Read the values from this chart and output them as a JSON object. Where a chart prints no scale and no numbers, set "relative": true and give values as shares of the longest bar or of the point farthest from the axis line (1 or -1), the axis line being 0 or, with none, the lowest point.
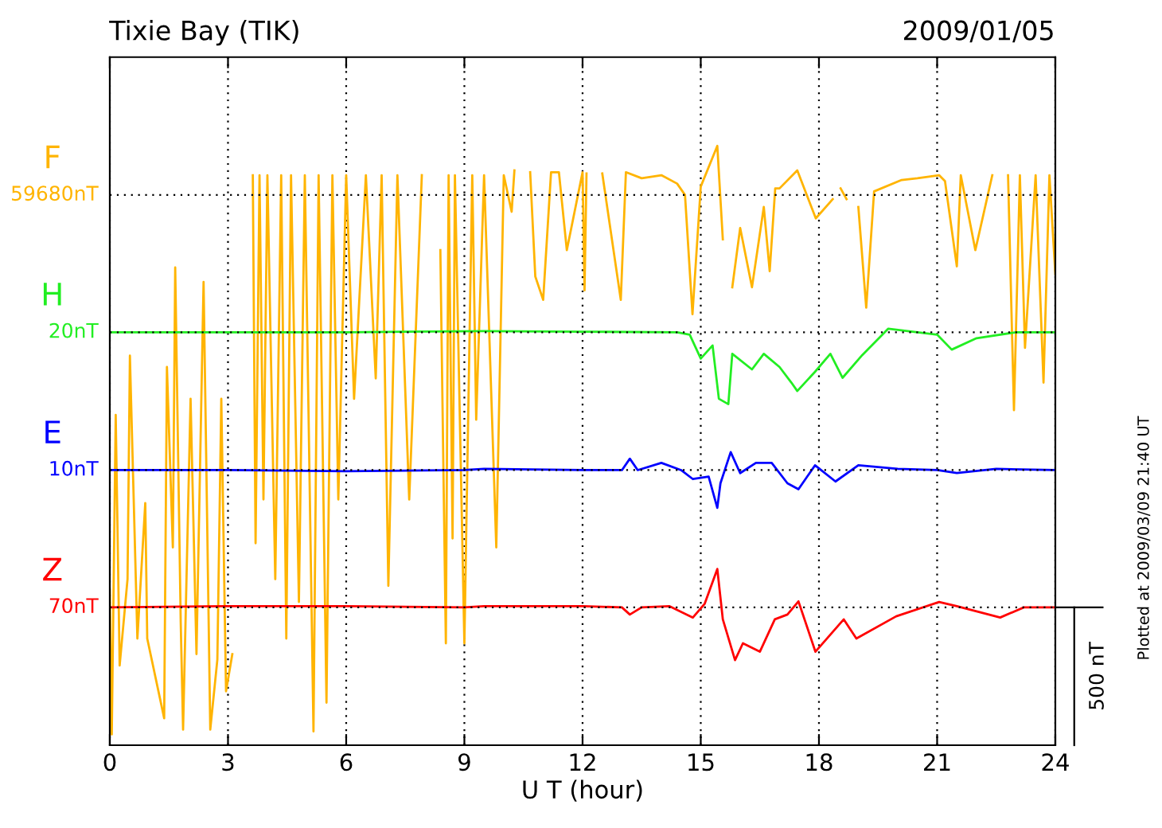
{
  "chart_data": {
    "type": "line",
    "title": "Tixie Bay (TIK)",
    "subtitle": "2009/01/05",
    "xlabel": "U T (hour)",
    "xlim": [
      0,
      24
    ],
    "xticks": [
      0,
      3,
      6,
      9,
      12,
      15,
      18,
      21,
      24
    ],
    "relative": true,
    "grid": "x",
    "marker": "none",
    "line_style": "solid",
    "ref_lines": [
      {
        "axis": "y",
        "value": 0.23,
        "label": "70nT",
        "color": "#000000",
        "line_style": "dotted"
      },
      {
        "axis": "y",
        "value": 0.459,
        "label": "10nT",
        "color": "#000000",
        "line_style": "dotted"
      },
      {
        "axis": "y",
        "value": 0.689,
        "label": "20nT",
        "color": "#000000",
        "line_style": "dotted"
      },
      {
        "axis": "y",
        "value": 0.918,
        "label": "59680nT",
        "color": "#000000",
        "line_style": "dotted"
      }
    ],
    "annotations": [
      "500 nT",
      "Plotted at 2009/03/09 21:40 UT"
    ],
    "series": [
      {
        "name": "F",
        "color": "#ffb400",
        "x": [
          0,
          0.05,
          0.15,
          0.25,
          0.45,
          0.51,
          0.7,
          0.9,
          0.95,
          1.38,
          1.45,
          1.6,
          1.66,
          1.8,
          1.86,
          2.05,
          2.2,
          2.38,
          2.55,
          2.73,
          2.83,
          2.95,
          3.11,
          3.3,
          3.63,
          3.7,
          3.8,
          3.9,
          4.0,
          4.2,
          4.35,
          4.48,
          4.6,
          4.8,
          4.95,
          5.17,
          5.3,
          5.5,
          5.65,
          5.8,
          6.0,
          6.2,
          6.5,
          6.75,
          6.9,
          7.07,
          7.3,
          7.6,
          7.92,
          8.1,
          8.39,
          8.53,
          8.6,
          8.7,
          8.76,
          9.0,
          9.2,
          9.3,
          9.5,
          9.81,
          10.0,
          10.2,
          10.27,
          10.45,
          10.67,
          10.8,
          11.0,
          11.2,
          11.4,
          11.6,
          12.0,
          12.05,
          12.1,
          12.3,
          12.5,
          12.97,
          13.1,
          13.5,
          14.0,
          14.4,
          14.6,
          14.79,
          15.0,
          15.42,
          15.56,
          15.65,
          15.8,
          16.0,
          16.3,
          16.6,
          16.75,
          16.89,
          17.0,
          17.45,
          17.92,
          18.35,
          18.45,
          18.55,
          18.7,
          18.8,
          19.0,
          19.2,
          19.4,
          20.1,
          20.5,
          21.05,
          21.2,
          21.5,
          21.6,
          21.97,
          22.4,
          22.6,
          22.8,
          22.95,
          23.1,
          23.23,
          23.5,
          23.7,
          23.85,
          24
        ],
        "values": [
          0.258,
          0.018,
          0.551,
          0.133,
          0.277,
          0.65,
          0.178,
          0.404,
          0.178,
          0.045,
          0.631,
          0.33,
          0.797,
          0.205,
          0.026,
          0.578,
          0.152,
          0.773,
          0.026,
          0.143,
          0.578,
          0.09,
          0.152,
          null,
          0.951,
          0.337,
          0.951,
          0.41,
          0.951,
          0.277,
          0.951,
          0.178,
          0.951,
          0.239,
          0.951,
          0.023,
          0.951,
          0.071,
          0.951,
          0.41,
          0.951,
          0.578,
          0.951,
          0.612,
          0.951,
          0.266,
          0.951,
          0.41,
          0.951,
          null,
          0.826,
          0.17,
          0.951,
          0.345,
          0.951,
          0.17,
          0.951,
          0.543,
          0.951,
          0.33,
          0.951,
          0.89,
          0.959,
          null,
          0.956,
          0.782,
          0.743,
          0.956,
          0.956,
          0.826,
          0.956,
          0.759,
          0.954,
          null,
          0.954,
          0.743,
          0.956,
          0.946,
          0.951,
          0.937,
          0.918,
          0.719,
          0.932,
          1,
          0.844,
          null,
          0.764,
          0.863,
          0.764,
          0.898,
          0.791,
          0.929,
          0.929,
          0.959,
          0.879,
          0.911,
          null,
          0.929,
          0.911,
          null,
          0.898,
          0.73,
          0.924,
          0.943,
          0.946,
          0.951,
          0.941,
          0.799,
          0.951,
          0.826,
          0.951,
          null,
          0.951,
          0.559,
          0.951,
          0.663,
          0.951,
          0.605,
          0.951,
          0.786
        ]
      },
      {
        "name": "H",
        "color": "#22ee22",
        "x": [
          0,
          3,
          6,
          9.5,
          12,
          14.4,
          14.72,
          15.0,
          15.3,
          15.46,
          15.7,
          15.8,
          16.3,
          16.6,
          17.0,
          17.3,
          17.45,
          17.9,
          18.29,
          18.6,
          19.1,
          19.76,
          21.0,
          21.37,
          22,
          23,
          24
        ],
        "values": [
          0.689,
          0.689,
          0.689,
          0.691,
          0.69,
          0.689,
          0.685,
          0.645,
          0.667,
          0.578,
          0.569,
          0.653,
          0.627,
          0.653,
          0.631,
          0.605,
          0.591,
          0.623,
          0.653,
          0.613,
          0.651,
          0.695,
          0.685,
          0.66,
          0.679,
          0.689,
          0.689
        ]
      },
      {
        "name": "E",
        "color": "#0000ff",
        "x": [
          0,
          3,
          6,
          9,
          9.5,
          12,
          13.0,
          13.2,
          13.4,
          14.0,
          14.5,
          14.8,
          15.2,
          15.42,
          15.5,
          15.76,
          16.0,
          16.4,
          16.8,
          17.2,
          17.48,
          17.9,
          18.42,
          19.0,
          20,
          21,
          21.5,
          22.5,
          24
        ],
        "values": [
          0.459,
          0.459,
          0.457,
          0.459,
          0.461,
          0.459,
          0.459,
          0.478,
          0.459,
          0.471,
          0.459,
          0.444,
          0.448,
          0.396,
          0.437,
          0.489,
          0.454,
          0.471,
          0.471,
          0.437,
          0.427,
          0.467,
          0.44,
          0.467,
          0.461,
          0.459,
          0.454,
          0.461,
          0.459
        ]
      },
      {
        "name": "Z",
        "color": "#ff0000",
        "x": [
          0,
          3,
          6,
          9,
          9.5,
          12,
          13.0,
          13.2,
          13.5,
          14.2,
          14.8,
          15.1,
          15.42,
          15.56,
          15.87,
          16.07,
          16.5,
          16.88,
          17.2,
          17.48,
          17.91,
          18.63,
          18.95,
          19.96,
          21.05,
          21.5,
          22.6,
          23.2,
          24
        ],
        "values": [
          0.23,
          0.232,
          0.232,
          0.23,
          0.232,
          0.232,
          0.23,
          0.218,
          0.23,
          0.232,
          0.213,
          0.236,
          0.294,
          0.21,
          0.142,
          0.17,
          0.156,
          0.21,
          0.218,
          0.24,
          0.156,
          0.21,
          0.178,
          0.215,
          0.239,
          0.232,
          0.213,
          0.23,
          0.23
        ]
      }
    ]
  }
}
